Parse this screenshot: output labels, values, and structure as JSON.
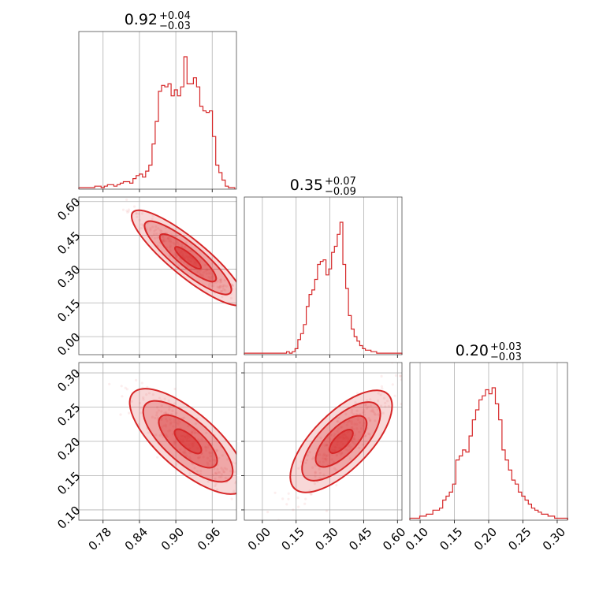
{
  "colors": {
    "series": "#d62728",
    "grid": "#b0b0b0",
    "frame": "#4d4d4d"
  },
  "chart_data": {
    "type": "corner",
    "grid": true,
    "parameters": [
      {
        "median": 0.92,
        "plus": "+0.04",
        "minus": "−0.03",
        "title_value": "0.92",
        "range": [
          0.74,
          1.0
        ]
      },
      {
        "median": 0.35,
        "plus": "+0.07",
        "minus": "−0.09",
        "title_value": "0.35",
        "range": [
          -0.08,
          0.62
        ]
      },
      {
        "median": 0.2,
        "plus": "+0.03",
        "minus": "−0.03",
        "title_value": "0.20",
        "range": [
          0.085,
          0.315
        ]
      }
    ],
    "ticks": [
      [
        "0.78",
        "0.84",
        "0.90",
        "0.96"
      ],
      [
        "0.00",
        "0.15",
        "0.30",
        "0.45",
        "0.60"
      ],
      [
        "0.10",
        "0.15",
        "0.20",
        "0.25",
        "0.30"
      ]
    ],
    "tick_values": [
      [
        0.78,
        0.84,
        0.9,
        0.96
      ],
      [
        0.0,
        0.15,
        0.3,
        0.45,
        0.6
      ],
      [
        0.1,
        0.15,
        0.2,
        0.25,
        0.3
      ]
    ],
    "histograms": [
      {
        "bin_start": 0.74,
        "bin_width": 0.00525,
        "counts": [
          0.01,
          0.01,
          0.01,
          0.01,
          0.01,
          0.02,
          0.02,
          0.01,
          0.02,
          0.03,
          0.03,
          0.02,
          0.03,
          0.04,
          0.05,
          0.05,
          0.04,
          0.07,
          0.09,
          0.1,
          0.08,
          0.12,
          0.16,
          0.3,
          0.45,
          0.65,
          0.69,
          0.68,
          0.7,
          0.62,
          0.66,
          0.62,
          0.68,
          0.88,
          0.7,
          0.7,
          0.74,
          0.68,
          0.55,
          0.52,
          0.51,
          0.52,
          0.35,
          0.16,
          0.11,
          0.06,
          0.02,
          0.01,
          0.01
        ]
      },
      {
        "bin_start": -0.08,
        "bin_width": 0.0125,
        "counts": [
          0.01,
          0.01,
          0.01,
          0.01,
          0.01,
          0.01,
          0.01,
          0.01,
          0.01,
          0.01,
          0.01,
          0.01,
          0.01,
          0.01,
          0.01,
          0.02,
          0.01,
          0.02,
          0.04,
          0.1,
          0.14,
          0.2,
          0.32,
          0.4,
          0.43,
          0.5,
          0.6,
          0.62,
          0.63,
          0.53,
          0.57,
          0.68,
          0.72,
          0.8,
          0.88,
          0.6,
          0.44,
          0.26,
          0.17,
          0.12,
          0.09,
          0.06,
          0.04,
          0.03,
          0.03,
          0.02,
          0.02,
          0.01,
          0.01,
          0.01,
          0.01,
          0.01,
          0.01,
          0.01,
          0.01,
          0.01
        ]
      },
      {
        "bin_start": 0.085,
        "bin_width": 0.0048,
        "counts": [
          0.01,
          0.01,
          0.01,
          0.02,
          0.02,
          0.03,
          0.03,
          0.05,
          0.05,
          0.06,
          0.1,
          0.12,
          0.14,
          0.18,
          0.3,
          0.32,
          0.35,
          0.34,
          0.42,
          0.5,
          0.55,
          0.6,
          0.62,
          0.65,
          0.63,
          0.66,
          0.58,
          0.5,
          0.35,
          0.3,
          0.25,
          0.2,
          0.18,
          0.14,
          0.12,
          0.1,
          0.08,
          0.06,
          0.05,
          0.04,
          0.03,
          0.03,
          0.02,
          0.02,
          0.01,
          0.01,
          0.01,
          0.01
        ]
      }
    ]
  }
}
